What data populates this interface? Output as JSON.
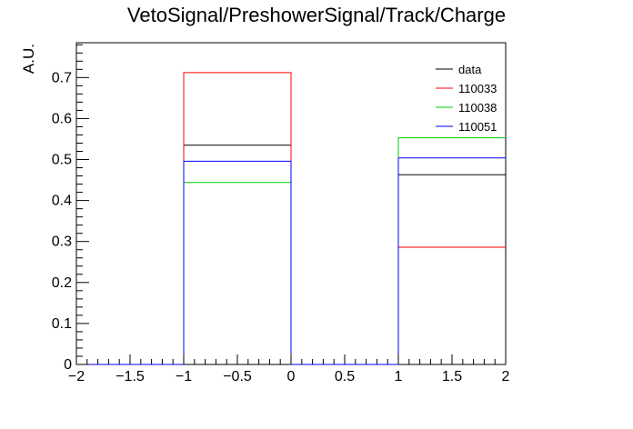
{
  "chart_data": {
    "type": "histogram-step",
    "title": "VetoSignal/PreshowerSignal/Track/Charge",
    "xlabel": "",
    "ylabel": "A.U.",
    "xlim": [
      -2,
      2
    ],
    "ylim": [
      0,
      0.785
    ],
    "bin_edges": [
      -2,
      -1,
      0,
      1,
      2
    ],
    "x_ticks": [
      -2,
      -1.5,
      -1,
      -0.5,
      0,
      0.5,
      1,
      1.5,
      2
    ],
    "x_tick_labels": [
      "−2",
      "−1.5",
      "−1",
      "−0.5",
      "0",
      "0.5",
      "1",
      "1.5",
      "2"
    ],
    "y_ticks": [
      0,
      0.1,
      0.2,
      0.3,
      0.4,
      0.5,
      0.6,
      0.7
    ],
    "y_tick_labels": [
      "0",
      "0.1",
      "0.2",
      "0.3",
      "0.4",
      "0.5",
      "0.6",
      "0.7"
    ],
    "grid": false,
    "legend_position": "top-right",
    "series": [
      {
        "name": "data",
        "color": "#000000",
        "values": [
          0,
          0.535,
          0,
          0.463
        ]
      },
      {
        "name": "110033",
        "color": "#ff0000",
        "values": [
          0,
          0.712,
          0,
          0.286
        ]
      },
      {
        "name": "110038",
        "color": "#00cc00",
        "values": [
          0,
          0.444,
          0,
          0.553
        ]
      },
      {
        "name": "110051",
        "color": "#0000ff",
        "values": [
          0,
          0.496,
          0,
          0.504
        ]
      }
    ]
  }
}
